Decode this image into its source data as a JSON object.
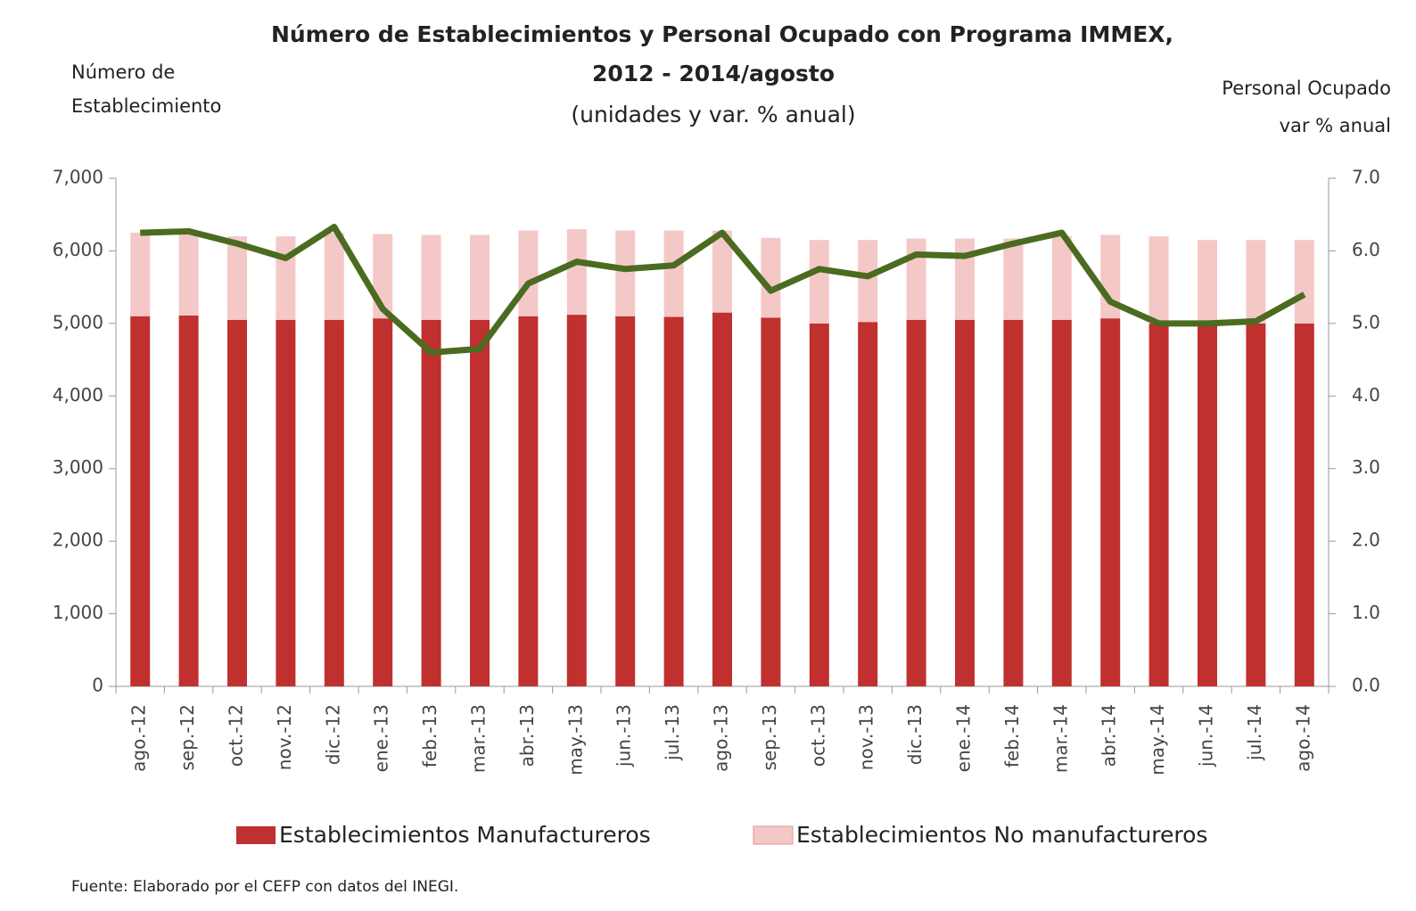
{
  "chart_data": {
    "type": "bar",
    "title": [
      "Número de Establecimientos y Personal Ocupado con Programa IMMEX,",
      "2012 - 2014/agosto"
    ],
    "subtitle": "(unidades y var. % anual)",
    "y_label": [
      "Número de",
      "Establecimiento"
    ],
    "y2_label": [
      "Personal Ocupado",
      "var % anual"
    ],
    "source": "Fuente: Elaborado por el CEFP con datos del INEGI.",
    "categories": [
      "ago.-12",
      "sep.-12",
      "oct.-12",
      "nov.-12",
      "dic.-12",
      "ene.-13",
      "feb.-13",
      "mar.-13",
      "abr.-13",
      "may.-13",
      "jun.-13",
      "jul.-13",
      "ago.-13",
      "sep.-13",
      "oct.-13",
      "nov.-13",
      "dic.-13",
      "ene.-14",
      "feb.-14",
      "mar.-14",
      "abr.-14",
      "may.-14",
      "jun.-14",
      "jul.-14",
      "ago.-14"
    ],
    "series": [
      {
        "name": "Establecimientos Manufactureros",
        "color": "#c0302f",
        "stack": true,
        "values": [
          5100,
          5110,
          5050,
          5050,
          5050,
          5070,
          5050,
          5050,
          5100,
          5120,
          5100,
          5090,
          5150,
          5080,
          5000,
          5020,
          5050,
          5050,
          5050,
          5050,
          5070,
          5000,
          5000,
          5000,
          5000
        ]
      },
      {
        "name": "Establecimientos No manufactureros",
        "color": "#f5c8c8",
        "stack": true,
        "values": [
          1150,
          1140,
          1150,
          1150,
          1200,
          1160,
          1170,
          1170,
          1180,
          1180,
          1180,
          1190,
          1130,
          1100,
          1150,
          1130,
          1120,
          1120,
          1120,
          1150,
          1150,
          1200,
          1150,
          1150,
          1150
        ]
      },
      {
        "color": "#4a6b20",
        "axis": "y2",
        "type": "line",
        "values": [
          6.25,
          6.27,
          6.1,
          5.9,
          6.33,
          5.2,
          4.6,
          4.65,
          5.55,
          5.85,
          5.75,
          5.8,
          6.25,
          5.45,
          5.75,
          5.65,
          5.95,
          5.93,
          6.1,
          6.25,
          5.3,
          5.0,
          5.0,
          5.03,
          5.4
        ]
      }
    ],
    "ylim": [
      0,
      7000
    ],
    "yticks": [
      0,
      {
        "value": 1000,
        "label": "1,000"
      },
      {
        "value": 2000,
        "label": "2,000"
      },
      {
        "value": 3000,
        "label": "3,000"
      },
      {
        "value": 4000,
        "label": "4,000"
      },
      {
        "value": 5000,
        "label": "5,000"
      },
      {
        "value": 6000,
        "label": "6,000"
      },
      {
        "value": 7000,
        "label": "7,000"
      }
    ],
    "y2lim": [
      0,
      7
    ],
    "y2ticks": [
      {
        "value": 0,
        "label": "0.0"
      },
      {
        "value": 1,
        "label": "1.0"
      },
      {
        "value": 2,
        "label": "2.0"
      },
      {
        "value": 3,
        "label": "3.0"
      },
      {
        "value": 4,
        "label": "4.0"
      },
      {
        "value": 5,
        "label": "5.0"
      },
      {
        "value": 6,
        "label": "6.0"
      },
      {
        "value": 7,
        "label": "7.0"
      }
    ],
    "grid": false,
    "legend": "bottom"
  }
}
